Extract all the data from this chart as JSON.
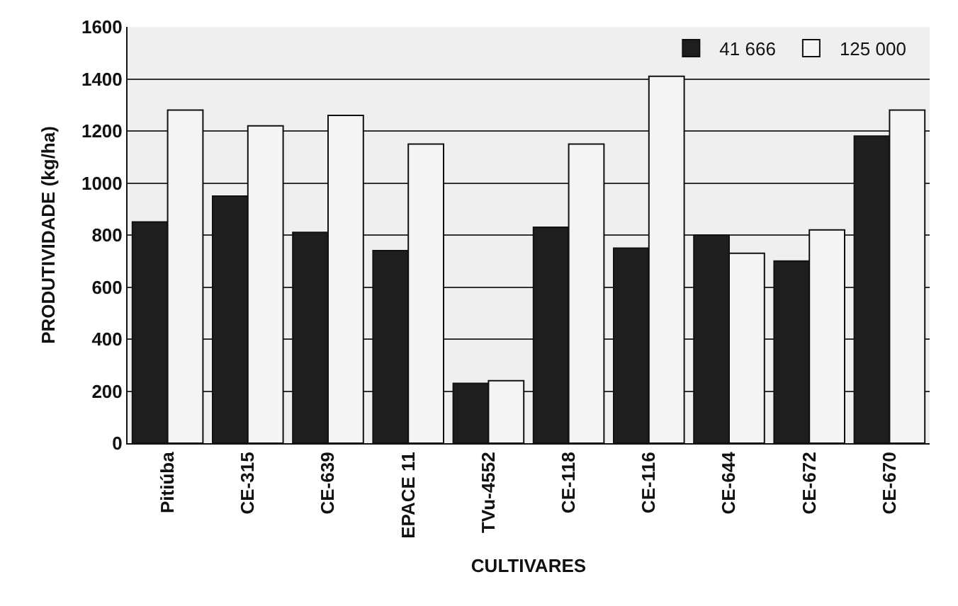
{
  "chart_data": {
    "type": "bar",
    "xlabel": "CULTIVARES",
    "ylabel": "PRODUTIVIDADE (kg/ha)",
    "categories": [
      "Pitiúba",
      "CE-315",
      "CE-639",
      "EPACE 11",
      "TVu-4552",
      "CE-118",
      "CE-116",
      "CE-644",
      "CE-672",
      "CE-670"
    ],
    "series": [
      {
        "name": "41 666",
        "color": "#1e1e1e",
        "values": [
          850,
          950,
          810,
          740,
          230,
          830,
          750,
          800,
          700,
          1180
        ]
      },
      {
        "name": "125 000",
        "color": "#f4f4f4",
        "values": [
          1280,
          1220,
          1260,
          1150,
          240,
          1150,
          1410,
          730,
          820,
          1280
        ]
      }
    ],
    "ylim": [
      0,
      1600
    ],
    "yticks": [
      0,
      200,
      400,
      600,
      800,
      1000,
      1200,
      1400,
      1600
    ],
    "grid": "y",
    "legend": "top"
  }
}
